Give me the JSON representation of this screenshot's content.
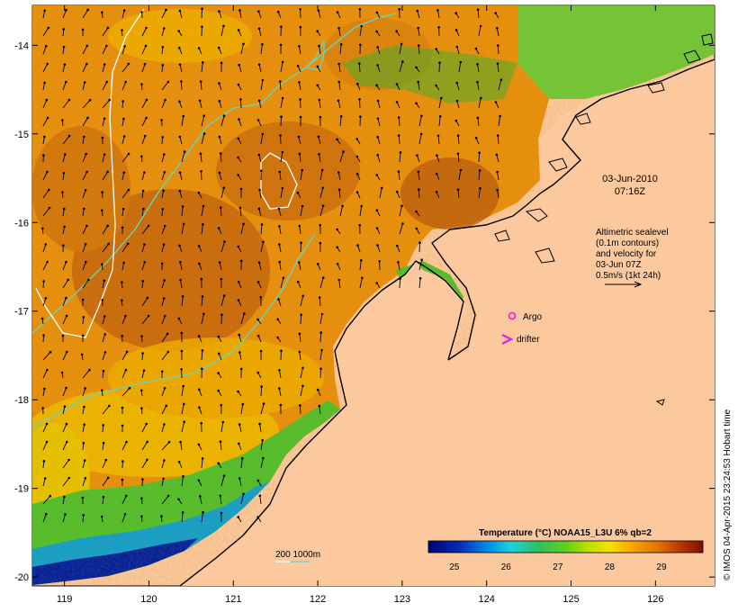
{
  "map": {
    "lon_ticks": [
      "119",
      "120",
      "121",
      "122",
      "123",
      "124",
      "125",
      "126"
    ],
    "lat_ticks": [
      "-14",
      "-15",
      "-16",
      "-17",
      "-18",
      "-19",
      "-20"
    ],
    "lon_range": [
      118.62,
      126.7
    ],
    "lat_range": [
      -20.1,
      -13.55
    ],
    "timestamp_line1": "03-Jun-2010",
    "timestamp_line2": "07:16Z",
    "altimetry_note": [
      "Altimetric sealevel",
      "(0.1m contours)",
      "and velocity for",
      "03-Jun 07Z",
      "0.5m/s (1kt 24h)"
    ],
    "argo_label": "Argo",
    "drifter_label": "drifter",
    "bathymetry_label": "200  1000m",
    "credit": "© IMOS 04-Apr-2015 23:24:53 Hobart time"
  },
  "colorbar": {
    "title": "Temperature (°C) NOAA15_L3U 6% qb=2",
    "ticks": [
      "25",
      "26",
      "27",
      "28",
      "29"
    ],
    "range": [
      24.5,
      29.8
    ]
  },
  "colors": {
    "land": "#fcc99f",
    "coast": "#000000",
    "bathymetry_200": "#5fd8c8",
    "bathymetry_1000": "#ffffff",
    "argo": "#e020e0",
    "drifter": "#e020e0"
  }
}
